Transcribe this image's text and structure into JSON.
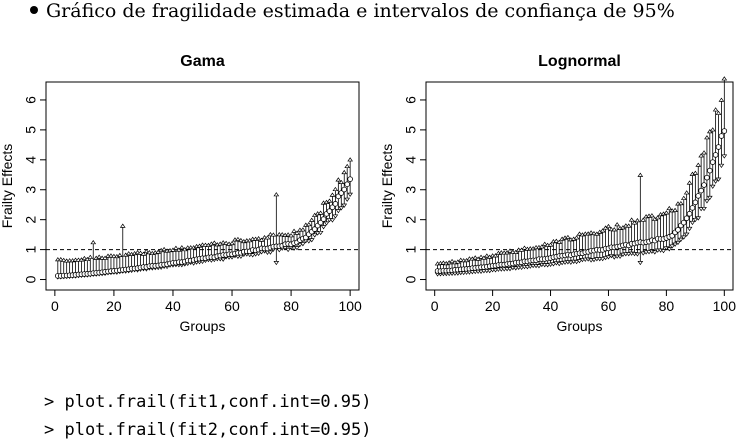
{
  "caption": "Gráfico de fragilidade estimada e intervalos de confiança de 95%",
  "code_lines": [
    "> plot.frail(fit1,conf.int=0.95)",
    "> plot.frail(fit2,conf.int=0.95)"
  ],
  "chart_data": [
    {
      "type": "scatter",
      "title": "Gama",
      "xlabel": "Groups",
      "ylabel": "Frailty Effects",
      "xlim": [
        0,
        100
      ],
      "ylim": [
        0,
        6.5
      ],
      "xticks": [
        0,
        20,
        40,
        60,
        80,
        100
      ],
      "yticks": [
        0,
        1,
        2,
        3,
        4,
        5,
        6
      ],
      "reference_line": 1,
      "n_groups": 100,
      "point": {
        "start": 0.12,
        "knee": 1.2,
        "end": 3.4
      },
      "upper": {
        "start": 0.7,
        "knee": 1.6,
        "end": 4.05
      },
      "lower": {
        "start": 0.02,
        "knee": 1.0,
        "end": 2.75
      },
      "outliers": [
        {
          "x": 13,
          "upper": 1.3
        },
        {
          "x": 23,
          "upper": 1.85
        },
        {
          "x": 75,
          "upper": 2.9,
          "lower": 0.5
        }
      ]
    },
    {
      "type": "scatter",
      "title": "Lognormal",
      "xlabel": "Groups",
      "ylabel": "Frailty Effects",
      "xlim": [
        0,
        100
      ],
      "ylim": [
        0,
        6.5
      ],
      "xticks": [
        0,
        20,
        40,
        60,
        80,
        100
      ],
      "yticks": [
        0,
        1,
        2,
        3,
        4,
        5,
        6
      ],
      "reference_line": 1,
      "n_groups": 100,
      "point": {
        "start": 0.28,
        "knee": 1.4,
        "end": 5.0
      },
      "upper": {
        "start": 0.6,
        "knee": 2.3,
        "end": 6.45
      },
      "lower": {
        "start": 0.12,
        "knee": 0.95,
        "end": 3.9
      },
      "outliers": [
        {
          "x": 71,
          "upper": 3.55,
          "lower": 0.5
        }
      ]
    }
  ]
}
